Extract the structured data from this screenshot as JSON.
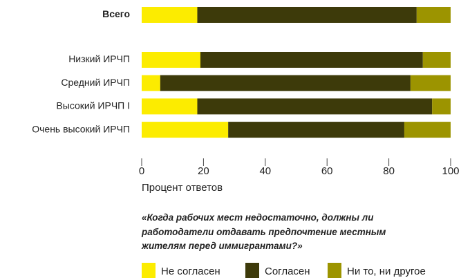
{
  "chart_data": {
    "type": "stacked_barh",
    "categories": [
      "Всего",
      "Низкий ИРЧП",
      "Средний ИРЧП",
      "Высокий ИРЧП I",
      "Очень высокий ИРЧП"
    ],
    "series": [
      {
        "name": "Не согласен",
        "color": "#fcec00",
        "values": [
          18,
          19,
          6,
          18,
          28
        ]
      },
      {
        "name": "Согласен",
        "color": "#3d3a0a",
        "values": [
          71,
          72,
          81,
          76,
          57
        ]
      },
      {
        "name": "Ни то, ни другое",
        "color": "#9c9400",
        "values": [
          11,
          9,
          13,
          6,
          15
        ]
      }
    ],
    "xlim": [
      0,
      100
    ],
    "xticks": [
      0,
      20,
      40,
      60,
      80,
      100
    ],
    "xlabel": "Процент ответов",
    "annotation": "«Когда рабочих мест недостаточно, должны ли работодатели отдавать предпочтение местным жителям перед иммигрантами?»"
  }
}
